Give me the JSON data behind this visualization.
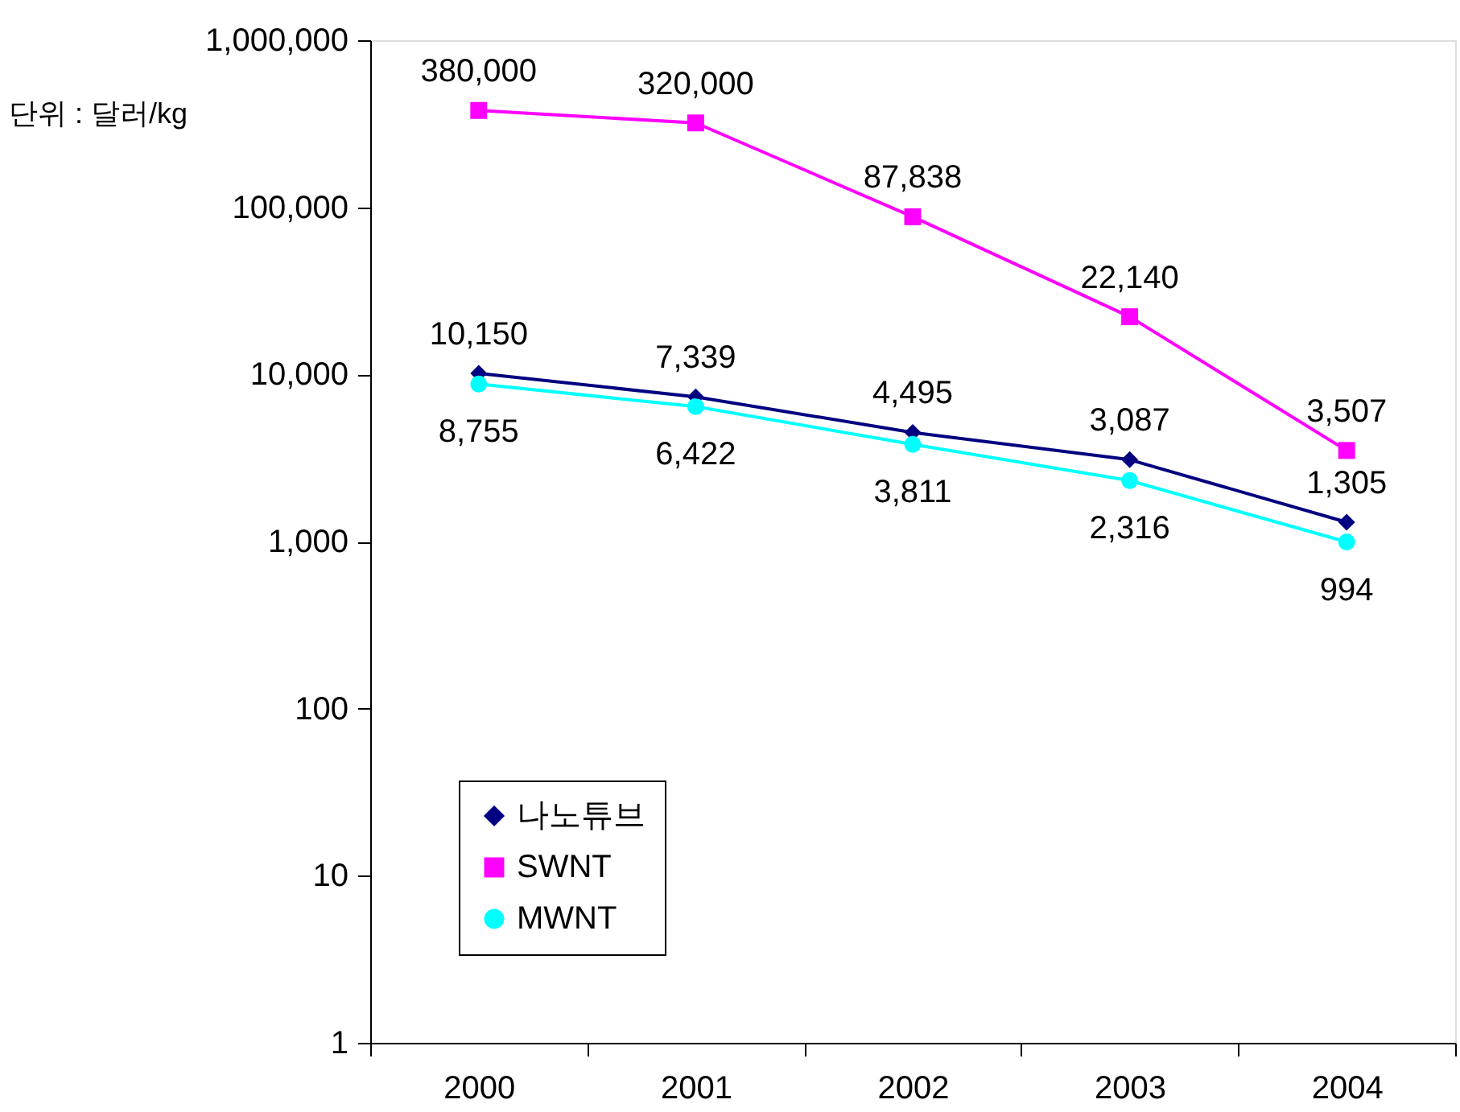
{
  "chart_data": {
    "type": "line",
    "ylabel": "단위 : 달러/kg",
    "categories": [
      "2000",
      "2001",
      "2002",
      "2003",
      "2004"
    ],
    "series": [
      {
        "name": "나노튜브",
        "color": "#000080",
        "marker": "diamond",
        "values": [
          10150,
          7339,
          4495,
          3087,
          1305
        ],
        "value_labels": [
          "10,150",
          "7,339",
          "4,495",
          "3,087",
          "1,305"
        ]
      },
      {
        "name": "SWNT",
        "color": "#ff00ff",
        "marker": "square",
        "values": [
          380000,
          320000,
          87838,
          22140,
          3507
        ],
        "value_labels": [
          "380,000",
          "320,000",
          "87,838",
          "22,140",
          "3,507"
        ]
      },
      {
        "name": "MWNT",
        "color": "#00ffff",
        "marker": "circle",
        "values": [
          8755,
          6422,
          3811,
          2316,
          994
        ],
        "value_labels": [
          "8,755",
          "6,422",
          "3,811",
          "2,316",
          "994"
        ]
      }
    ],
    "log": true,
    "ylim": [
      1,
      1000000
    ],
    "yticks": [
      1,
      10,
      100,
      {
        "value": 1000,
        "label": "1,000"
      },
      {
        "value": 10000,
        "label": "10,000"
      },
      {
        "value": 100000,
        "label": "100,000"
      },
      {
        "value": 1000000,
        "label": "1,000,000"
      }
    ],
    "grid": false,
    "legend": "bottom left"
  }
}
